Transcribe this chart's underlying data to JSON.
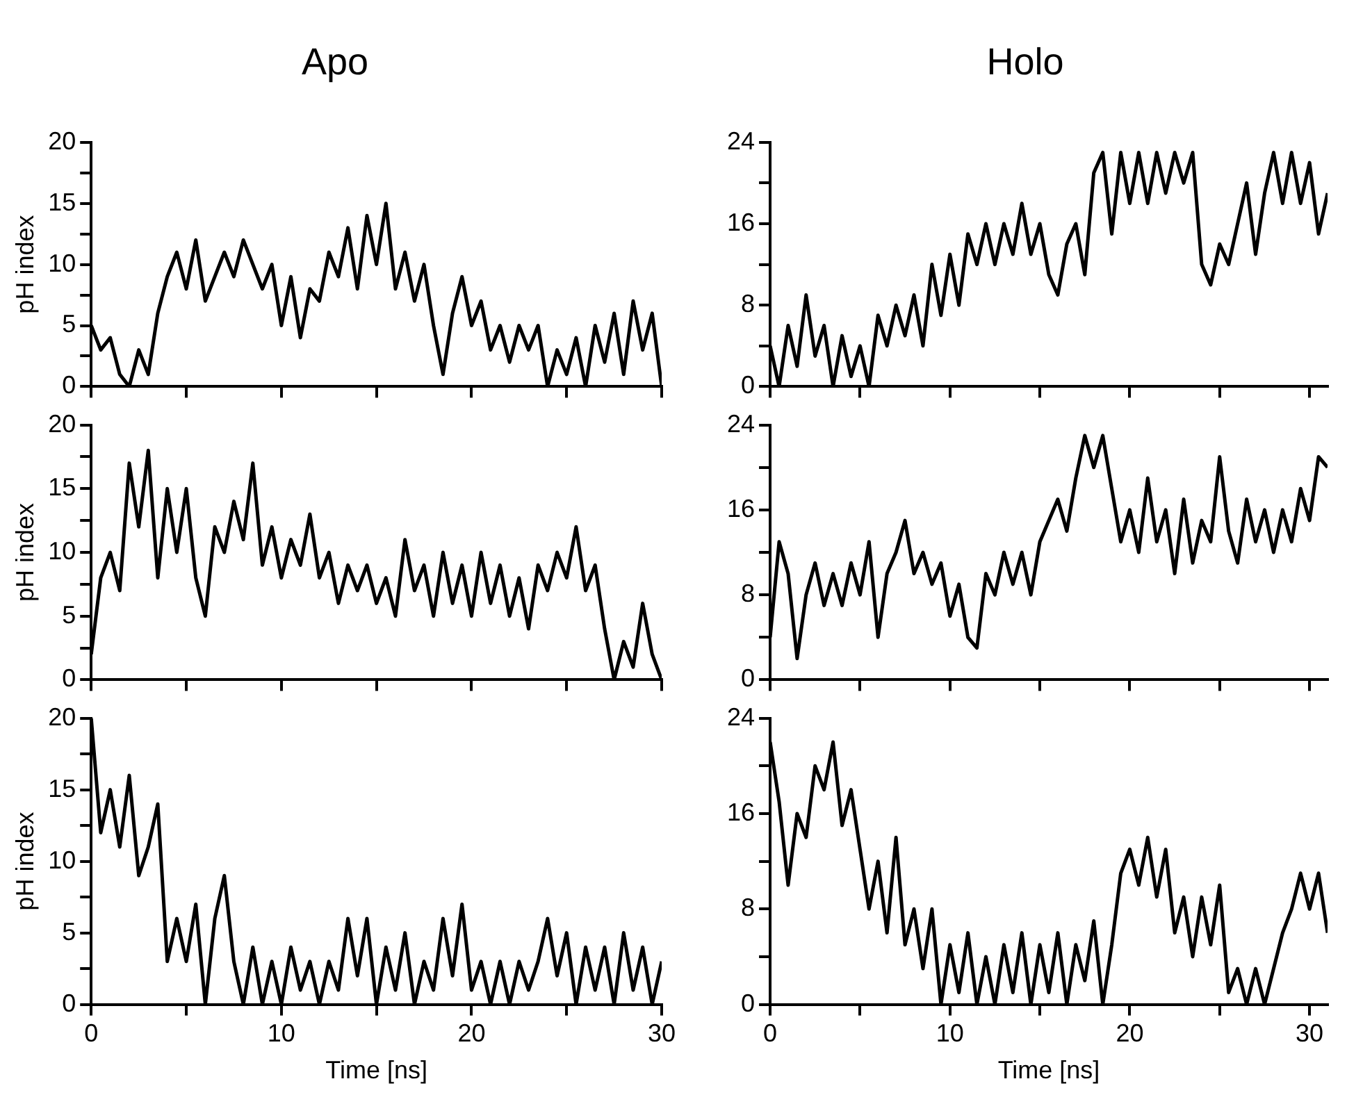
{
  "chart_data": [
    {
      "type": "line",
      "title": "Apo",
      "ylabel": "pH index",
      "xlim": [
        0,
        30
      ],
      "ylim": [
        0,
        20
      ],
      "xticks": [
        0,
        {
          "value": 5,
          "label": null
        },
        10,
        {
          "value": 15,
          "label": null
        },
        20,
        {
          "value": 25,
          "label": null
        },
        30
      ],
      "yticks": [
        0,
        {
          "value": 2.5,
          "label": null
        },
        5,
        {
          "value": 7.5,
          "label": null
        },
        10,
        {
          "value": 12.5,
          "label": null
        },
        15,
        {
          "value": 17.5,
          "label": null
        },
        20
      ],
      "tick_labels": "y",
      "marker": "none",
      "x": [
        0,
        0.5,
        1,
        1.5,
        2,
        2.5,
        3,
        3.5,
        4,
        4.5,
        5,
        5.5,
        6,
        6.5,
        7,
        7.5,
        8,
        8.5,
        9,
        9.5,
        10,
        10.5,
        11,
        11.5,
        12,
        12.5,
        13,
        13.5,
        14,
        14.5,
        15,
        15.5,
        16,
        16.5,
        17,
        17.5,
        18,
        18.5,
        19,
        19.5,
        20,
        20.5,
        21,
        21.5,
        22,
        22.5,
        23,
        23.5,
        24,
        24.5,
        25,
        25.5,
        26,
        26.5,
        27,
        27.5,
        28,
        28.5,
        29,
        29.5,
        30
      ],
      "series": [
        {
          "color": "#000000",
          "values": [
            5,
            3,
            4,
            1,
            0,
            3,
            1,
            6,
            9,
            11,
            8,
            12,
            7,
            9,
            11,
            9,
            12,
            10,
            8,
            10,
            5,
            9,
            4,
            8,
            7,
            11,
            9,
            13,
            8,
            14,
            10,
            15,
            8,
            11,
            7,
            10,
            5,
            1,
            6,
            9,
            5,
            7,
            3,
            5,
            2,
            5,
            3,
            5,
            0,
            3,
            1,
            4,
            0,
            5,
            2,
            6,
            1,
            7,
            3,
            6,
            0
          ]
        }
      ]
    },
    {
      "type": "line",
      "title": "Holo",
      "xlim": [
        0,
        31
      ],
      "ylim": [
        0,
        24
      ],
      "xticks": [
        0,
        {
          "value": 5,
          "label": null
        },
        10,
        {
          "value": 15,
          "label": null
        },
        20,
        {
          "value": 25,
          "label": null
        },
        30
      ],
      "yticks": [
        0,
        {
          "value": 4,
          "label": null
        },
        8,
        {
          "value": 12,
          "label": null
        },
        16,
        {
          "value": 20,
          "label": null
        },
        24
      ],
      "tick_labels": "y",
      "marker": "none",
      "x": [
        0,
        0.5,
        1,
        1.5,
        2,
        2.5,
        3,
        3.5,
        4,
        4.5,
        5,
        5.5,
        6,
        6.5,
        7,
        7.5,
        8,
        8.5,
        9,
        9.5,
        10,
        10.5,
        11,
        11.5,
        12,
        12.5,
        13,
        13.5,
        14,
        14.5,
        15,
        15.5,
        16,
        16.5,
        17,
        17.5,
        18,
        18.5,
        19,
        19.5,
        20,
        20.5,
        21,
        21.5,
        22,
        22.5,
        23,
        23.5,
        24,
        24.5,
        25,
        25.5,
        26,
        26.5,
        27,
        27.5,
        28,
        28.5,
        29,
        29.5,
        30,
        30.5,
        31
      ],
      "series": [
        {
          "color": "#000000",
          "values": [
            4,
            0,
            6,
            2,
            9,
            3,
            6,
            0,
            5,
            1,
            4,
            0,
            7,
            4,
            8,
            5,
            9,
            4,
            12,
            7,
            13,
            8,
            15,
            12,
            16,
            12,
            16,
            13,
            18,
            13,
            16,
            11,
            9,
            14,
            16,
            11,
            21,
            23,
            15,
            23,
            18,
            23,
            18,
            23,
            19,
            23,
            20,
            23,
            12,
            10,
            14,
            12,
            16,
            20,
            13,
            19,
            23,
            18,
            23,
            18,
            22,
            15,
            19
          ]
        }
      ]
    },
    {
      "type": "line",
      "ylabel": "pH index",
      "xlim": [
        0,
        30
      ],
      "ylim": [
        0,
        20
      ],
      "xticks": [
        0,
        {
          "value": 5,
          "label": null
        },
        10,
        {
          "value": 15,
          "label": null
        },
        20,
        {
          "value": 25,
          "label": null
        },
        30
      ],
      "yticks": [
        0,
        {
          "value": 2.5,
          "label": null
        },
        5,
        {
          "value": 7.5,
          "label": null
        },
        10,
        {
          "value": 12.5,
          "label": null
        },
        15,
        {
          "value": 17.5,
          "label": null
        },
        20
      ],
      "tick_labels": "y",
      "marker": "none",
      "x": [
        0,
        0.5,
        1,
        1.5,
        2,
        2.5,
        3,
        3.5,
        4,
        4.5,
        5,
        5.5,
        6,
        6.5,
        7,
        7.5,
        8,
        8.5,
        9,
        9.5,
        10,
        10.5,
        11,
        11.5,
        12,
        12.5,
        13,
        13.5,
        14,
        14.5,
        15,
        15.5,
        16,
        16.5,
        17,
        17.5,
        18,
        18.5,
        19,
        19.5,
        20,
        20.5,
        21,
        21.5,
        22,
        22.5,
        23,
        23.5,
        24,
        24.5,
        25,
        25.5,
        26,
        26.5,
        27,
        27.5,
        28,
        28.5,
        29,
        29.5,
        30
      ],
      "series": [
        {
          "color": "#000000",
          "values": [
            2,
            8,
            10,
            7,
            17,
            12,
            18,
            8,
            15,
            10,
            15,
            8,
            5,
            12,
            10,
            14,
            11,
            17,
            9,
            12,
            8,
            11,
            9,
            13,
            8,
            10,
            6,
            9,
            7,
            9,
            6,
            8,
            5,
            11,
            7,
            9,
            5,
            10,
            6,
            9,
            5,
            10,
            6,
            9,
            5,
            8,
            4,
            9,
            7,
            10,
            8,
            12,
            7,
            9,
            4,
            0,
            3,
            1,
            6,
            2,
            0
          ]
        }
      ]
    },
    {
      "type": "line",
      "xlim": [
        0,
        31
      ],
      "ylim": [
        0,
        24
      ],
      "xticks": [
        0,
        {
          "value": 5,
          "label": null
        },
        10,
        {
          "value": 15,
          "label": null
        },
        20,
        {
          "value": 25,
          "label": null
        },
        30
      ],
      "yticks": [
        0,
        {
          "value": 4,
          "label": null
        },
        8,
        {
          "value": 12,
          "label": null
        },
        16,
        {
          "value": 20,
          "label": null
        },
        24
      ],
      "tick_labels": "y",
      "marker": "none",
      "x": [
        0,
        0.5,
        1,
        1.5,
        2,
        2.5,
        3,
        3.5,
        4,
        4.5,
        5,
        5.5,
        6,
        6.5,
        7,
        7.5,
        8,
        8.5,
        9,
        9.5,
        10,
        10.5,
        11,
        11.5,
        12,
        12.5,
        13,
        13.5,
        14,
        14.5,
        15,
        15.5,
        16,
        16.5,
        17,
        17.5,
        18,
        18.5,
        19,
        19.5,
        20,
        20.5,
        21,
        21.5,
        22,
        22.5,
        23,
        23.5,
        24,
        24.5,
        25,
        25.5,
        26,
        26.5,
        27,
        27.5,
        28,
        28.5,
        29,
        29.5,
        30,
        30.5,
        31
      ],
      "series": [
        {
          "color": "#000000",
          "values": [
            4,
            13,
            10,
            2,
            8,
            11,
            7,
            10,
            7,
            11,
            8,
            13,
            4,
            10,
            12,
            15,
            10,
            12,
            9,
            11,
            6,
            9,
            4,
            3,
            10,
            8,
            12,
            9,
            12,
            8,
            13,
            15,
            17,
            14,
            19,
            23,
            20,
            23,
            18,
            13,
            16,
            12,
            19,
            13,
            16,
            10,
            17,
            11,
            15,
            13,
            21,
            14,
            11,
            17,
            13,
            16,
            12,
            16,
            13,
            18,
            15,
            21,
            20
          ]
        }
      ]
    },
    {
      "type": "line",
      "xlabel": "Time [ns]",
      "ylabel": "pH index",
      "xlim": [
        0,
        30
      ],
      "ylim": [
        0,
        20
      ],
      "xticks": [
        0,
        {
          "value": 5,
          "label": null
        },
        10,
        {
          "value": 15,
          "label": null
        },
        20,
        {
          "value": 25,
          "label": null
        },
        30
      ],
      "yticks": [
        0,
        {
          "value": 2.5,
          "label": null
        },
        5,
        {
          "value": 7.5,
          "label": null
        },
        10,
        {
          "value": 12.5,
          "label": null
        },
        15,
        {
          "value": 17.5,
          "label": null
        },
        20
      ],
      "marker": "none",
      "x": [
        0,
        0.5,
        1,
        1.5,
        2,
        2.5,
        3,
        3.5,
        4,
        4.5,
        5,
        5.5,
        6,
        6.5,
        7,
        7.5,
        8,
        8.5,
        9,
        9.5,
        10,
        10.5,
        11,
        11.5,
        12,
        12.5,
        13,
        13.5,
        14,
        14.5,
        15,
        15.5,
        16,
        16.5,
        17,
        17.5,
        18,
        18.5,
        19,
        19.5,
        20,
        20.5,
        21,
        21.5,
        22,
        22.5,
        23,
        23.5,
        24,
        24.5,
        25,
        25.5,
        26,
        26.5,
        27,
        27.5,
        28,
        28.5,
        29,
        29.5,
        30
      ],
      "series": [
        {
          "color": "#000000",
          "values": [
            20,
            12,
            15,
            11,
            16,
            9,
            11,
            14,
            3,
            6,
            3,
            7,
            0,
            6,
            9,
            3,
            0,
            4,
            0,
            3,
            0,
            4,
            1,
            3,
            0,
            3,
            1,
            6,
            2,
            6,
            0,
            4,
            1,
            5,
            0,
            3,
            1,
            6,
            2,
            7,
            1,
            3,
            0,
            3,
            0,
            3,
            1,
            3,
            6,
            2,
            5,
            0,
            4,
            1,
            4,
            0,
            5,
            1,
            4,
            0,
            3
          ]
        }
      ]
    },
    {
      "type": "line",
      "xlabel": "Time [ns]",
      "xlim": [
        0,
        31
      ],
      "ylim": [
        0,
        24
      ],
      "xticks": [
        0,
        {
          "value": 5,
          "label": null
        },
        10,
        {
          "value": 15,
          "label": null
        },
        20,
        {
          "value": 25,
          "label": null
        },
        30
      ],
      "yticks": [
        0,
        {
          "value": 4,
          "label": null
        },
        8,
        {
          "value": 12,
          "label": null
        },
        16,
        {
          "value": 20,
          "label": null
        },
        24
      ],
      "marker": "none",
      "x": [
        0,
        0.5,
        1,
        1.5,
        2,
        2.5,
        3,
        3.5,
        4,
        4.5,
        5,
        5.5,
        6,
        6.5,
        7,
        7.5,
        8,
        8.5,
        9,
        9.5,
        10,
        10.5,
        11,
        11.5,
        12,
        12.5,
        13,
        13.5,
        14,
        14.5,
        15,
        15.5,
        16,
        16.5,
        17,
        17.5,
        18,
        18.5,
        19,
        19.5,
        20,
        20.5,
        21,
        21.5,
        22,
        22.5,
        23,
        23.5,
        24,
        24.5,
        25,
        25.5,
        26,
        26.5,
        27,
        27.5,
        28,
        28.5,
        29,
        29.5,
        30,
        30.5,
        31
      ],
      "series": [
        {
          "color": "#000000",
          "values": [
            22,
            17,
            10,
            16,
            14,
            20,
            18,
            22,
            15,
            18,
            13,
            8,
            12,
            6,
            14,
            5,
            8,
            3,
            8,
            0,
            5,
            1,
            6,
            0,
            4,
            0,
            5,
            1,
            6,
            0,
            5,
            1,
            6,
            0,
            5,
            2,
            7,
            0,
            5,
            11,
            13,
            10,
            14,
            9,
            13,
            6,
            9,
            4,
            9,
            5,
            10,
            1,
            3,
            0,
            3,
            0,
            3,
            6,
            8,
            11,
            8,
            11,
            6
          ]
        }
      ]
    }
  ]
}
